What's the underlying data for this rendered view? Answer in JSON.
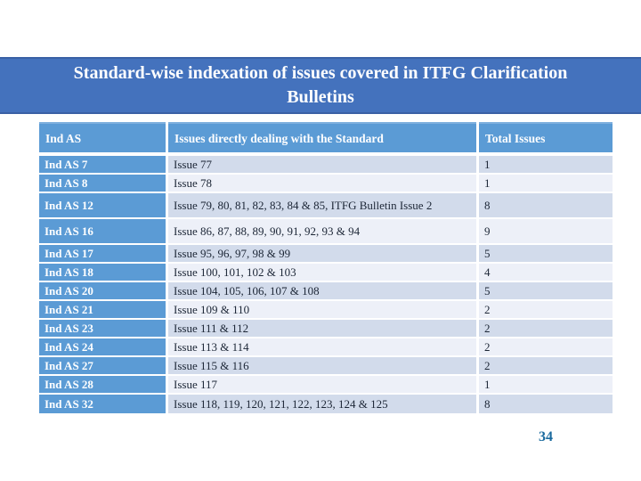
{
  "slide": {
    "title": {
      "line1": "Standard-wise indexation of issues covered in ITFG Clarification",
      "line2": "Bulletins"
    },
    "page_number": "34"
  },
  "table": {
    "columns": [
      "Ind AS",
      "Issues directly dealing with the Standard",
      "Total Issues"
    ],
    "rows": [
      {
        "standard": "Ind AS 7",
        "issues": "Issue 77",
        "total": "1"
      },
      {
        "standard": "Ind AS 8",
        "issues": "Issue 78",
        "total": "1"
      },
      {
        "standard": "Ind AS 12",
        "issues": "Issue 79, 80, 81, 82, 83, 84 & 85, ITFG Bulletin Issue 2",
        "total": "8"
      },
      {
        "standard": "Ind AS 16",
        "issues": "Issue 86, 87, 88, 89, 90, 91, 92, 93 & 94",
        "total": "9"
      },
      {
        "standard": "Ind AS 17",
        "issues": "Issue 95, 96, 97, 98 & 99",
        "total": "5"
      },
      {
        "standard": "Ind AS 18",
        "issues": "Issue 100, 101, 102 & 103",
        "total": "4"
      },
      {
        "standard": "Ind AS 20",
        "issues": "Issue 104, 105, 106, 107 & 108",
        "total": "5"
      },
      {
        "standard": "Ind AS 21",
        "issues": "Issue 109 & 110",
        "total": "2"
      },
      {
        "standard": "Ind AS 23",
        "issues": "Issue 111 & 112",
        "total": "2"
      },
      {
        "standard": "Ind AS 24",
        "issues": "Issue 113 & 114",
        "total": "2"
      },
      {
        "standard": "Ind AS 27",
        "issues": "Issue 115 & 116",
        "total": "2"
      },
      {
        "standard": "Ind AS 28",
        "issues": "Issue 117",
        "total": "1"
      },
      {
        "standard": "Ind AS 32",
        "issues": "Issue 118, 119, 120, 121, 122, 123, 124 & 125",
        "total": "8"
      }
    ]
  },
  "colors": {
    "title_bg": "#4472bd",
    "title_border": "#3a61a5",
    "header_bg": "#5b9bd5",
    "row_dark": "#d2dbeb",
    "row_light": "#edf0f8",
    "body_text": "#1c2636",
    "page_number_color": "#1a6a9e"
  }
}
